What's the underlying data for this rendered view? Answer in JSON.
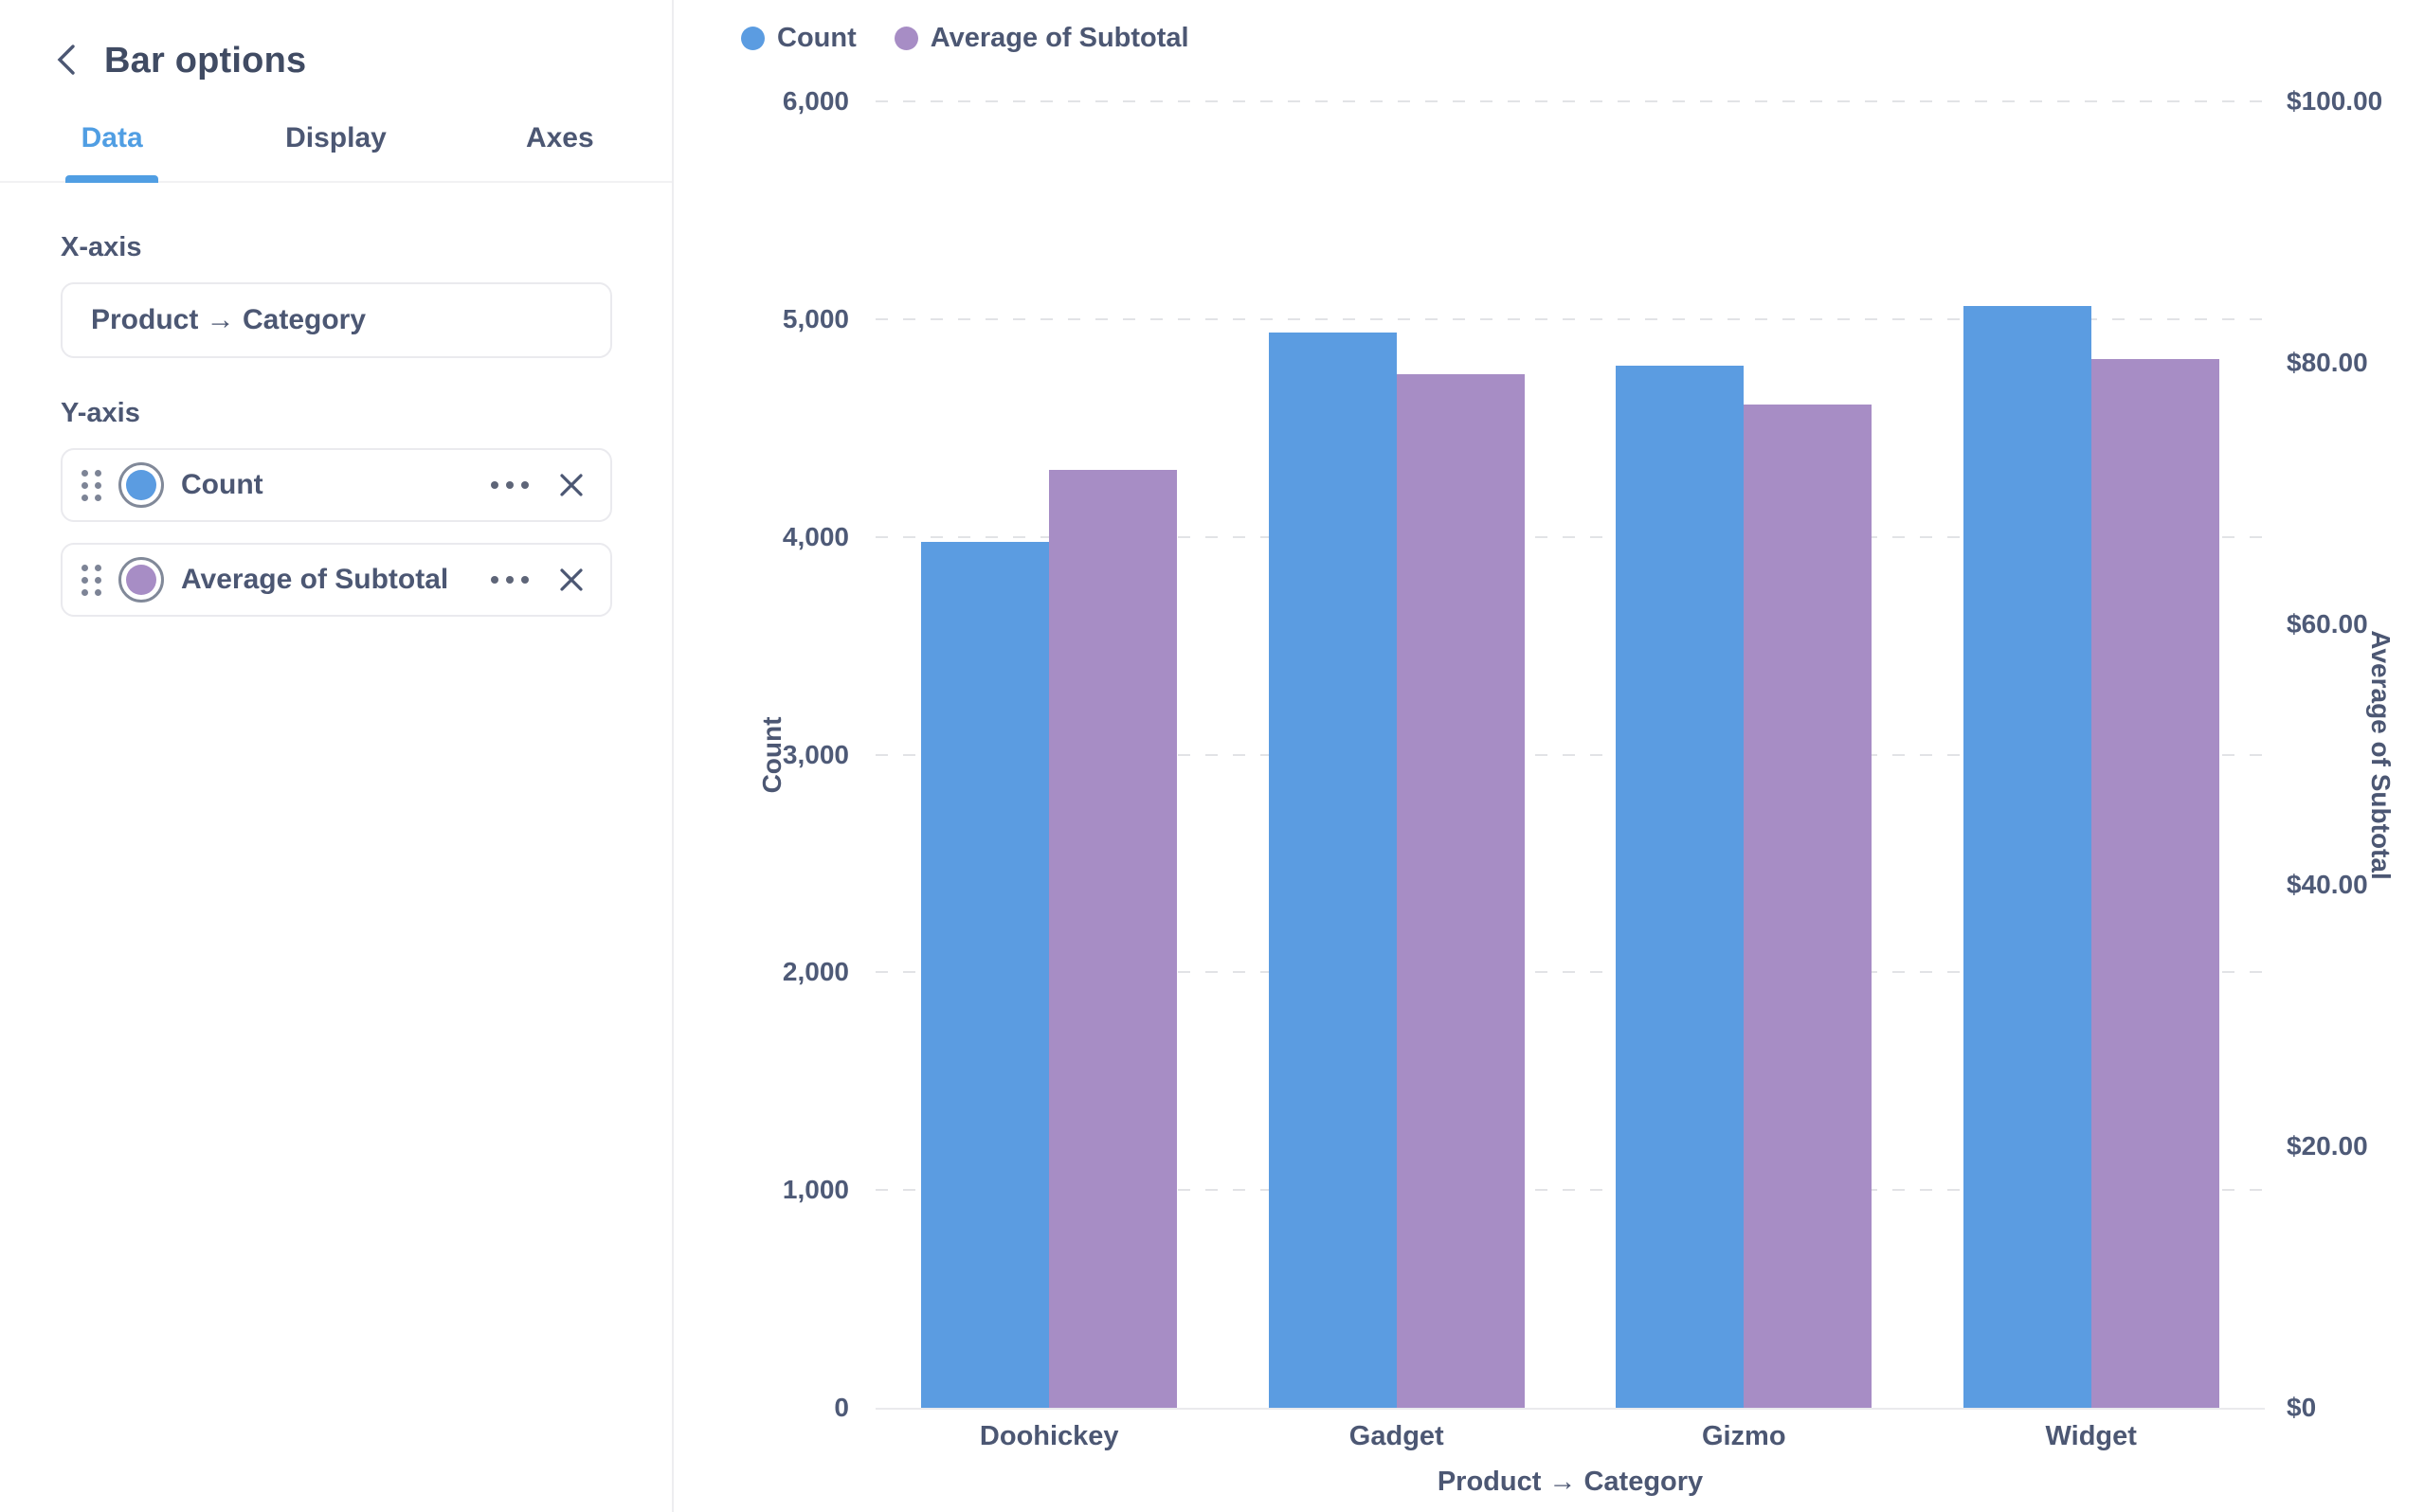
{
  "sidebar": {
    "title": "Bar options",
    "tabs": [
      {
        "label": "Data",
        "active": true
      },
      {
        "label": "Display",
        "active": false
      },
      {
        "label": "Axes",
        "active": false
      }
    ],
    "x_axis_section": {
      "label": "X-axis",
      "field": "Product → Category"
    },
    "y_axis_section": {
      "label": "Y-axis",
      "series": [
        {
          "label": "Count",
          "color": "#5B9CE1"
        },
        {
          "label": "Average of Subtotal",
          "color": "#A78DC5"
        }
      ]
    }
  },
  "chart_data": {
    "type": "bar",
    "title": "",
    "categories": [
      "Doohickey",
      "Gadget",
      "Gizmo",
      "Widget"
    ],
    "series": [
      {
        "name": "Count",
        "axis": "left",
        "color": "#5B9CE1",
        "values": [
          3976,
          4939,
          4784,
          5061
        ]
      },
      {
        "name": "Average of Subtotal",
        "axis": "right",
        "color": "#A78DC5",
        "values": [
          71.8,
          79.1,
          76.8,
          80.3
        ]
      }
    ],
    "xlabel": "Product → Category",
    "left_axis": {
      "label": "Count",
      "min": 0,
      "max": 6000,
      "step": 1000,
      "ticks": [
        "0",
        "1,000",
        "2,000",
        "3,000",
        "4,000",
        "5,000",
        "6,000"
      ]
    },
    "right_axis": {
      "label": "Average of Subtotal",
      "min": 0,
      "max": 100,
      "step": 20,
      "ticks": [
        "$0",
        "$20.00",
        "$40.00",
        "$60.00",
        "$80.00",
        "$100.00"
      ]
    },
    "legend": [
      "Count",
      "Average of Subtotal"
    ],
    "legend_position": "top-left",
    "grid": "dashed-horizontal"
  }
}
